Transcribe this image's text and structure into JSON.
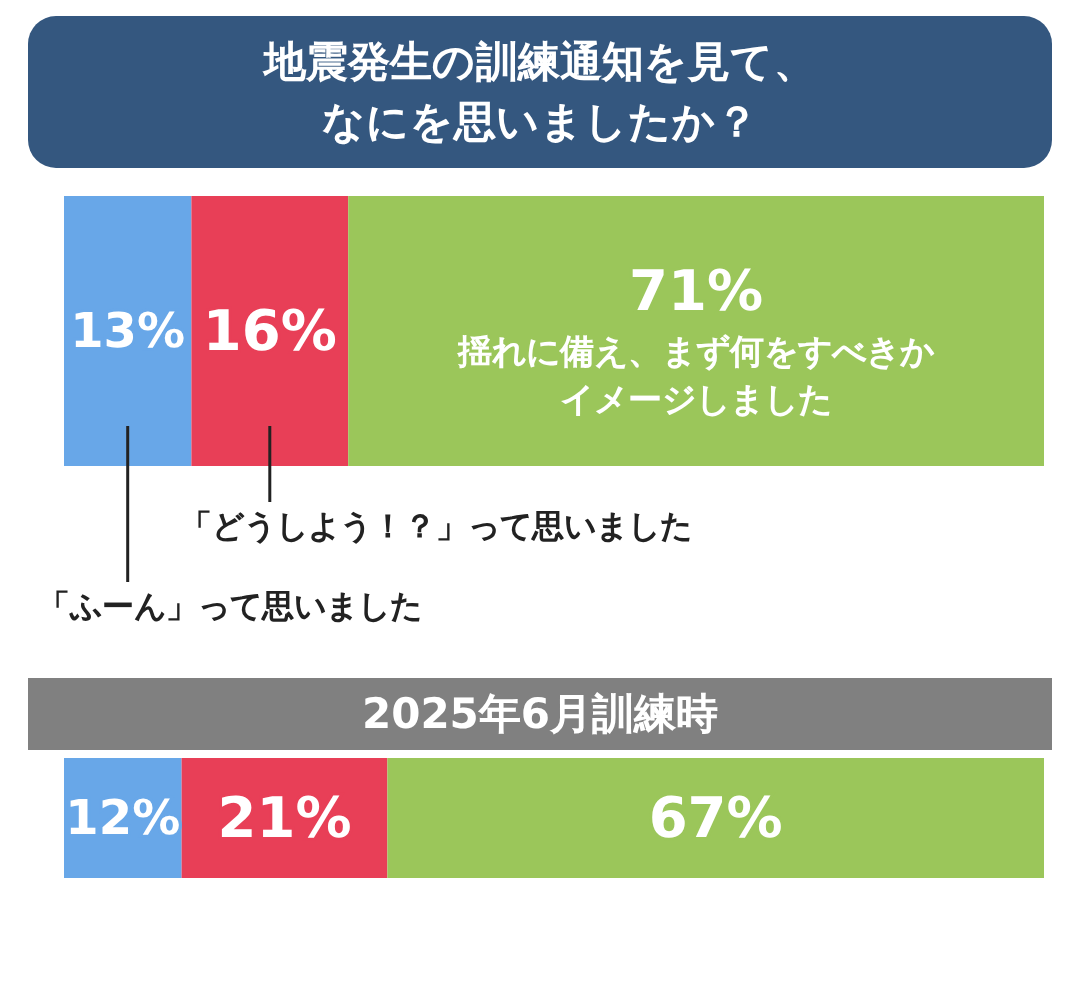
{
  "chart_data": [
    {
      "type": "bar",
      "orientation": "horizontal",
      "stacked": true,
      "title": "地震発生の訓練通知を見て、なにを思いましたか？",
      "categories": [
        null
      ],
      "series": [
        {
          "name": "「ふーん」って思いました",
          "color": "#68a7e8",
          "values": [
            13
          ],
          "value_labels": [
            "13%"
          ]
        },
        {
          "name": "「どうしよう！？」って思いました",
          "color": "#e83f57",
          "values": [
            16
          ],
          "value_labels": [
            "16%"
          ]
        },
        {
          "name": "揺れに備え、まず何をすべきかイメージしました",
          "color": "#9bc65a",
          "values": [
            71
          ],
          "value_labels": [
            "71%"
          ]
        }
      ]
    },
    {
      "type": "bar",
      "orientation": "horizontal",
      "stacked": true,
      "title": "2025年6月訓練時",
      "categories": [
        null
      ],
      "series": [
        {
          "color": "#68a7e8",
          "values": [
            12
          ],
          "value_labels": [
            "12%"
          ]
        },
        {
          "color": "#e83f57",
          "values": [
            21
          ],
          "value_labels": [
            "21%"
          ]
        },
        {
          "color": "#9bc65a",
          "values": [
            67
          ],
          "value_labels": [
            "67%"
          ]
        }
      ]
    }
  ]
}
